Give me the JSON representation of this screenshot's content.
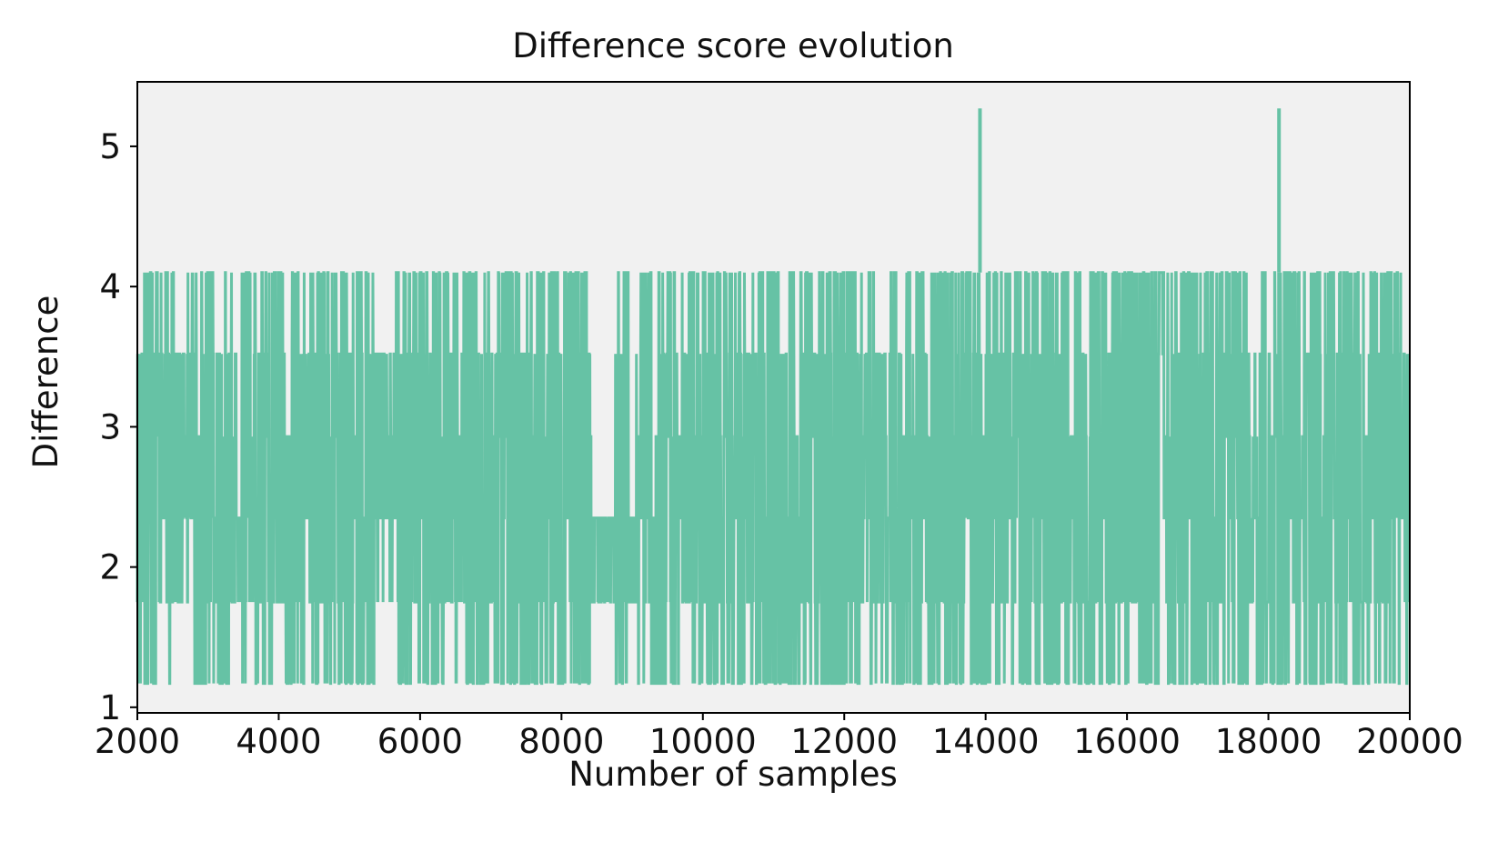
{
  "chart_data": {
    "type": "line",
    "title": "Difference score evolution",
    "xlabel": "Number of samples",
    "ylabel": "Difference",
    "xlim": [
      2000,
      20000
    ],
    "ylim": [
      0.96,
      5.46
    ],
    "xticks": [
      2000,
      4000,
      6000,
      8000,
      10000,
      12000,
      14000,
      16000,
      18000,
      20000
    ],
    "yticks": [
      1,
      2,
      3,
      4,
      5
    ],
    "grid": false,
    "legend": "none",
    "background_color": "#f1f1f1",
    "series": [
      {
        "color": "#66c2a5",
        "levels": [
          1.17,
          1.75,
          2.35,
          2.93,
          3.52,
          4.1,
          5.27
        ],
        "x_start": 2000,
        "x_end": 20000,
        "n_points": 18001,
        "segments": [
          {
            "x": [
              2000,
              2100
            ],
            "min": 1.17,
            "max": 3.52
          },
          {
            "x": [
              2100,
              2600
            ],
            "min": 1.17,
            "max": 4.1
          },
          {
            "x": [
              2600,
              2680
            ],
            "min": 1.75,
            "max": 3.52
          },
          {
            "x": [
              2680,
              3400
            ],
            "min": 1.17,
            "max": 4.1
          },
          {
            "x": [
              3400,
              3480
            ],
            "min": 1.75,
            "max": 2.35
          },
          {
            "x": [
              3480,
              5400
            ],
            "min": 1.17,
            "max": 4.1
          },
          {
            "x": [
              5400,
              5650
            ],
            "min": 1.75,
            "max": 3.52
          },
          {
            "x": [
              5650,
              8420
            ],
            "min": 1.17,
            "max": 4.1
          },
          {
            "x": [
              8420,
              8760
            ],
            "min": 1.75,
            "max": 2.35
          },
          {
            "x": [
              8760,
              8950
            ],
            "min": 1.17,
            "max": 4.1
          },
          {
            "x": [
              8950,
              9060
            ],
            "min": 1.75,
            "max": 2.35
          },
          {
            "x": [
              9060,
              13880
            ],
            "min": 1.17,
            "max": 4.1
          },
          {
            "x": [
              13880,
              13960
            ],
            "min": 1.17,
            "max": 5.27
          },
          {
            "x": [
              13960,
              18100
            ],
            "min": 1.17,
            "max": 4.1
          },
          {
            "x": [
              18100,
              18180
            ],
            "min": 1.17,
            "max": 5.27
          },
          {
            "x": [
              18180,
              20000
            ],
            "min": 1.17,
            "max": 4.1
          }
        ],
        "spikes": [
          {
            "x": 13920,
            "y": 5.27
          },
          {
            "x": 18150,
            "y": 5.27
          }
        ]
      }
    ]
  }
}
